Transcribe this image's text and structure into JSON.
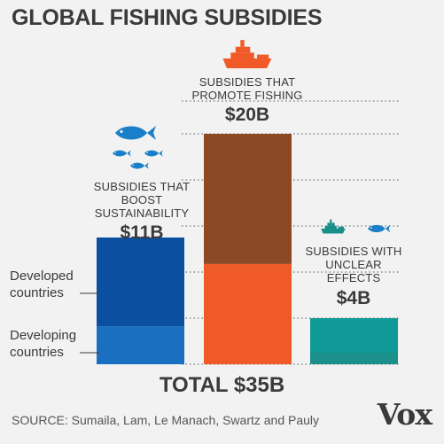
{
  "title": "GLOBAL FISHING SUBSIDIES",
  "total": "TOTAL $35B",
  "source": "SOURCE: Sumaila, Lam, Le Manach, Swartz and Pauly",
  "logo": "Vox",
  "segment_labels": {
    "developed": "Developed countries",
    "developing": "Developing countries"
  },
  "icons": {
    "beneficial": "fish-icon",
    "harmful": "ship-icon",
    "unclear": "ship-and-fish-icon"
  },
  "chart_data": {
    "type": "bar",
    "categories": [
      "SUBSIDIES THAT BOOST SUSTAINABILITY",
      "SUBSIDIES THAT PROMOTE FISHING",
      "SUBSIDIES WITH UNCLEAR EFFECTS"
    ],
    "value_labels": [
      "$11B",
      "$20B",
      "$4B"
    ],
    "ylim": [
      0,
      20
    ],
    "grid": "dotted horizontal lines",
    "series": [
      {
        "name": "Developing countries",
        "values": [
          3.3,
          8.7,
          1.0
        ],
        "colors": [
          "#1a6fc0",
          "#f05a28",
          "#1b8f8a"
        ]
      },
      {
        "name": "Developed countries",
        "values": [
          7.7,
          11.3,
          3.0
        ],
        "colors": [
          "#0b4fa0",
          "#8b4a24",
          "#0f9a97"
        ]
      }
    ]
  }
}
